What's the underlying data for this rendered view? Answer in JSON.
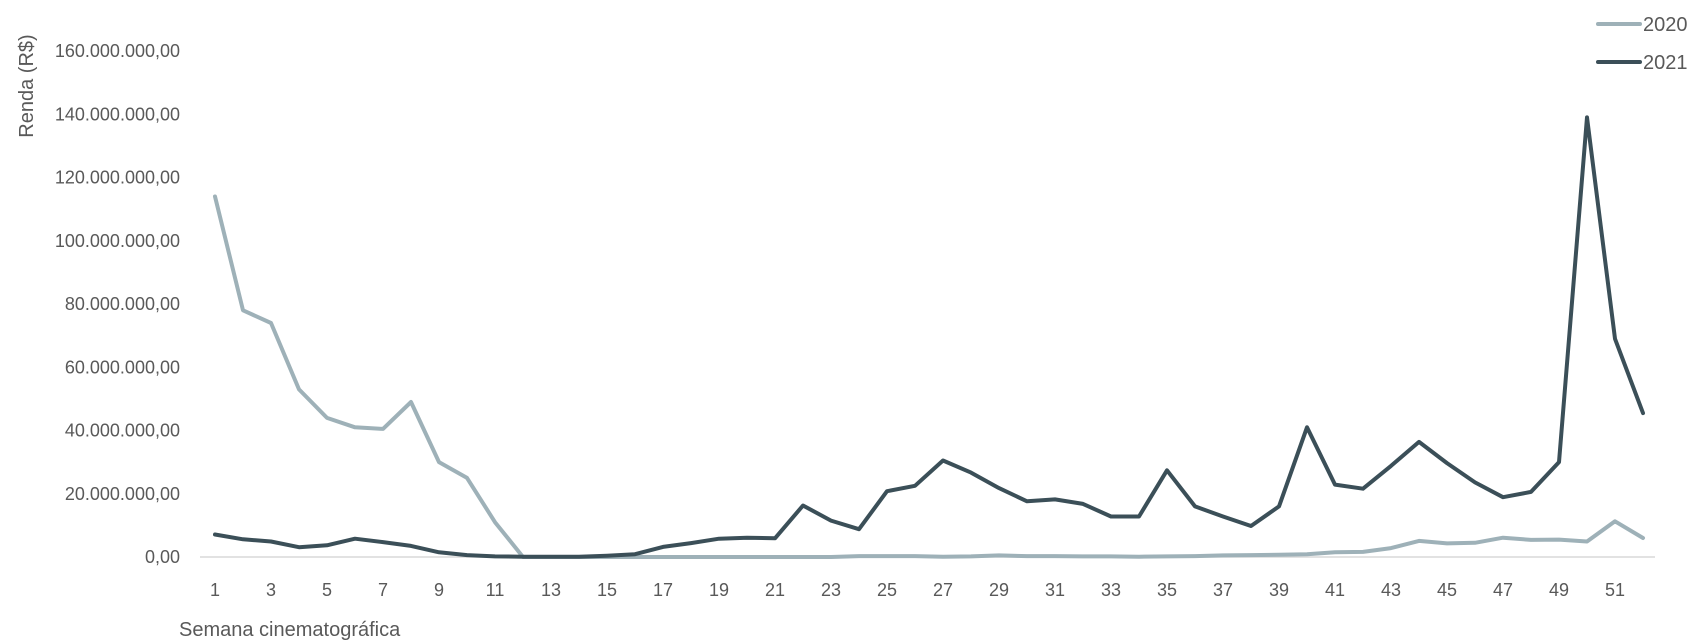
{
  "chart_data": {
    "type": "line",
    "xlabel": "Semana cinematográfica",
    "ylabel": "Renda (R$)",
    "ylim": [
      0,
      160000000
    ],
    "yticks": [
      0,
      20000000,
      40000000,
      60000000,
      80000000,
      100000000,
      120000000,
      140000000,
      160000000
    ],
    "ytick_labels": [
      "0,00",
      "20.000.000,00",
      "40.000.000,00",
      "60.000.000,00",
      "80.000.000,00",
      "100.000.000,00",
      "120.000.000,00",
      "140.000.000,00",
      "160.000.000,00"
    ],
    "x": [
      1,
      2,
      3,
      4,
      5,
      6,
      7,
      8,
      9,
      10,
      11,
      12,
      13,
      14,
      15,
      16,
      17,
      18,
      19,
      20,
      21,
      22,
      23,
      24,
      25,
      26,
      27,
      28,
      29,
      30,
      31,
      32,
      33,
      34,
      35,
      36,
      37,
      38,
      39,
      40,
      41,
      42,
      43,
      44,
      45,
      46,
      47,
      48,
      49,
      50,
      51,
      52
    ],
    "xtick_labels": [
      "1",
      "3",
      "5",
      "7",
      "9",
      "11",
      "13",
      "15",
      "17",
      "19",
      "21",
      "23",
      "25",
      "27",
      "29",
      "31",
      "33",
      "35",
      "37",
      "39",
      "41",
      "43",
      "45",
      "47",
      "49",
      "51"
    ],
    "legend_position": "top-right",
    "grid": false,
    "series": [
      {
        "name": "2020",
        "color": "#9eb1b8",
        "values": [
          114000000,
          78000000,
          74000000,
          53000000,
          44000000,
          41000000,
          40500000,
          49000000,
          30000000,
          25000000,
          11000000,
          0,
          0,
          0,
          0,
          0,
          0,
          0,
          0,
          0,
          0,
          0,
          0,
          300000,
          300000,
          300000,
          100000,
          200000,
          500000,
          300000,
          300000,
          200000,
          200000,
          100000,
          200000,
          300000,
          500000,
          600000,
          700000,
          900000,
          1500000,
          1600000,
          2800000,
          5100000,
          4300000,
          4500000,
          6100000,
          5400000,
          5500000,
          4900000,
          11300000,
          6000000
        ]
      },
      {
        "name": "2021",
        "color": "#3b4f58",
        "values": [
          7100000,
          5600000,
          4900000,
          3100000,
          3700000,
          5800000,
          4700000,
          3500000,
          1500000,
          600000,
          200000,
          100000,
          100000,
          100000,
          400000,
          900000,
          3200000,
          4400000,
          5800000,
          6100000,
          5900000,
          16300000,
          11500000,
          8800000,
          20800000,
          22500000,
          30500000,
          26700000,
          21800000,
          17600000,
          18200000,
          16800000,
          12800000,
          12800000,
          27400000,
          16000000,
          12800000,
          9800000,
          16000000,
          41000000,
          22900000,
          21600000,
          28800000,
          36400000,
          29700000,
          23600000,
          18900000,
          20600000,
          30000000,
          139000000,
          69000000,
          45500000
        ]
      }
    ]
  }
}
